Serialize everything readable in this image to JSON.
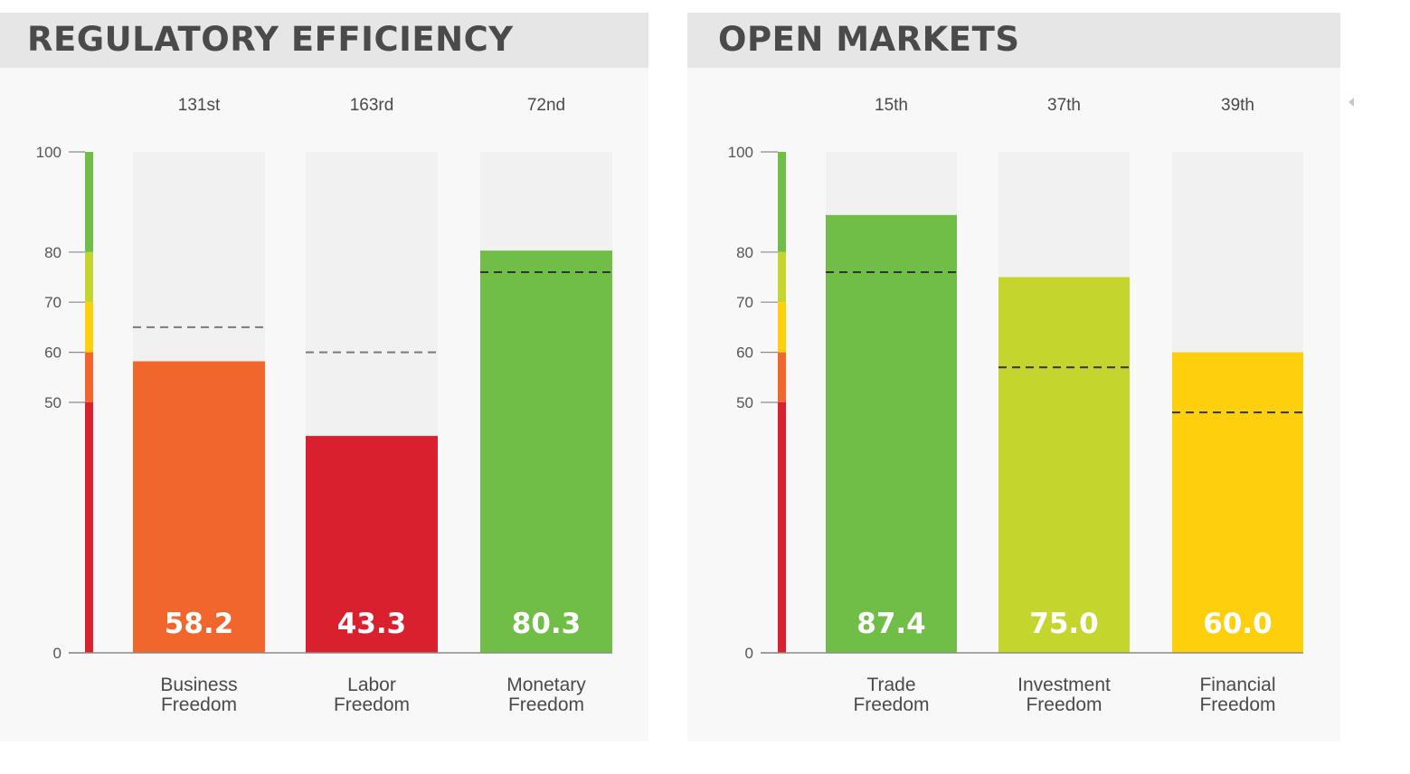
{
  "colors": {
    "red": "#d9202f",
    "orange": "#f0662c",
    "yellow": "#fecf0d",
    "lime": "#c4d62d",
    "green": "#70be47",
    "track": "#f1f1f1"
  },
  "chart_data": [
    {
      "type": "bar",
      "title": "REGULATORY EFFICIENCY",
      "ylim": [
        0,
        100
      ],
      "yticks": [
        0,
        50,
        60,
        70,
        80,
        100
      ],
      "scale_bands": [
        {
          "from": 0,
          "to": 50,
          "color": "#d9202f"
        },
        {
          "from": 50,
          "to": 60,
          "color": "#f0662c"
        },
        {
          "from": 60,
          "to": 70,
          "color": "#fecf0d"
        },
        {
          "from": 70,
          "to": 80,
          "color": "#c4d62d"
        },
        {
          "from": 80,
          "to": 100,
          "color": "#70be47"
        }
      ],
      "bars": [
        {
          "label": [
            "Business",
            "Freedom"
          ],
          "rank": "131st",
          "value": 58.2,
          "value_label": "58.2",
          "reference": 65,
          "color": "#f0662c"
        },
        {
          "label": [
            "Labor",
            "Freedom"
          ],
          "rank": "163rd",
          "value": 43.3,
          "value_label": "43.3",
          "reference": 60,
          "color": "#d9202f"
        },
        {
          "label": [
            "Monetary",
            "Freedom"
          ],
          "rank": "72nd",
          "value": 80.3,
          "value_label": "80.3",
          "reference": 76,
          "color": "#70be47"
        }
      ]
    },
    {
      "type": "bar",
      "title": "OPEN MARKETS",
      "ylim": [
        0,
        100
      ],
      "yticks": [
        0,
        50,
        60,
        70,
        80,
        100
      ],
      "scale_bands": [
        {
          "from": 0,
          "to": 50,
          "color": "#d9202f"
        },
        {
          "from": 50,
          "to": 60,
          "color": "#f0662c"
        },
        {
          "from": 60,
          "to": 70,
          "color": "#fecf0d"
        },
        {
          "from": 70,
          "to": 80,
          "color": "#c4d62d"
        },
        {
          "from": 80,
          "to": 100,
          "color": "#70be47"
        }
      ],
      "bars": [
        {
          "label": [
            "Trade",
            "Freedom"
          ],
          "rank": "15th",
          "value": 87.4,
          "value_label": "87.4",
          "reference": 76,
          "color": "#70be47"
        },
        {
          "label": [
            "Investment",
            "Freedom"
          ],
          "rank": "37th",
          "value": 75.0,
          "value_label": "75.0",
          "reference": 57,
          "color": "#c4d62d"
        },
        {
          "label": [
            "Financial",
            "Freedom"
          ],
          "rank": "39th",
          "value": 60.0,
          "value_label": "60.0",
          "reference": 48,
          "color": "#fecf0d"
        }
      ]
    }
  ]
}
